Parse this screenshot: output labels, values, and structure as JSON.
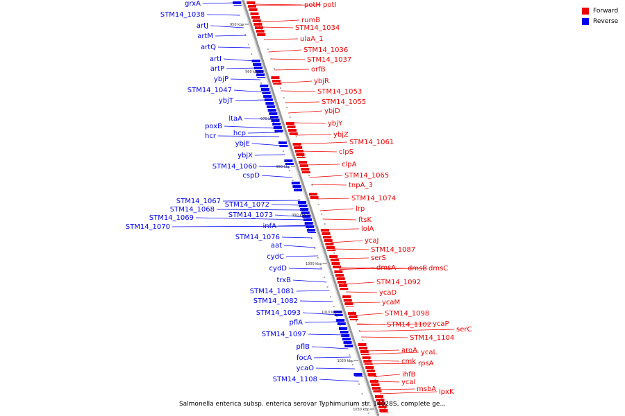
{
  "colors": {
    "forward": "#ee0000",
    "reverse": "#0000ee",
    "backbone": "#999999"
  },
  "legend": [
    {
      "label": "Forward",
      "color": "#ee0000"
    },
    {
      "label": "Reverse",
      "color": "#0000ee"
    }
  ],
  "caption": "Salmonella enterica subsp. enterica serovar Typhimurium str. 14028S, complete ge...",
  "scale": {
    "unit": "kbp",
    "tick_labels": [
      "950 kbp",
      "960 kbp",
      "970 kbp",
      "980 kbp",
      "990 kbp",
      "1000 kbp",
      "1010 kbp",
      "1020 kbp",
      "1030 kbp"
    ]
  },
  "forward_genes": [
    "potH",
    "potI",
    "rumB",
    "STM14_1034",
    "ulaA_1",
    "STM14_1036",
    "STM14_1037",
    "orfB",
    "ybjR",
    "STM14_1053",
    "STM14_1055",
    "ybjD",
    "ybjY",
    "ybjZ",
    "STM14_1061",
    "clpS",
    "clpA",
    "STM14_1065",
    "tnpA_3",
    "STM14_1074",
    "lrp",
    "ftsK",
    "lolA",
    "ycaJ",
    "STM14_1087",
    "serS",
    "dmsA",
    "dmsB",
    "dmsC",
    "STM14_1092",
    "ycaD",
    "ycaM",
    "STM14_1098",
    "STM14_1102",
    "ycaP",
    "serC",
    "STM14_1104",
    "aroA",
    "ycaL",
    "cmk",
    "rpsA",
    "ihfB",
    "ycaI",
    "msbA",
    "lpxK"
  ],
  "reverse_genes": [
    "grxA",
    "STM14_1038",
    "artJ",
    "artM",
    "artQ",
    "artI",
    "artP",
    "ybjP",
    "STM14_1047",
    "ybjT",
    "ltaA",
    "poxB",
    "hcp",
    "hcr",
    "ybjE",
    "ybjX",
    "STM14_1060",
    "cspD",
    "STM14_1067",
    "STM14_1068",
    "STM14_1069",
    "STM14_1070",
    "STM14_1072",
    "STM14_1073",
    "infA",
    "STM14_1076",
    "aat",
    "cydC",
    "cydD",
    "trxB",
    "STM14_1081",
    "STM14_1082",
    "STM14_1093",
    "pflA",
    "STM14_1097",
    "pflB",
    "focA",
    "ycaO",
    "STM14_1108"
  ]
}
